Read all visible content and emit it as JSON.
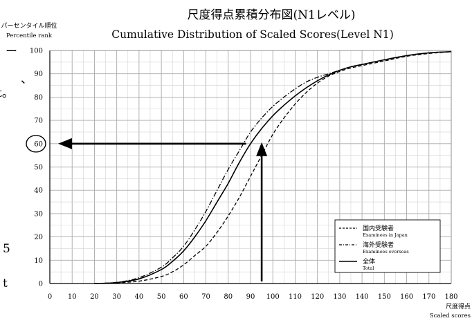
{
  "page": {
    "left_margin_fragments": [
      "ー",
      "、",
      "t。",
      "5",
      "t"
    ]
  },
  "chart_data": {
    "type": "line",
    "title": "尺度得点累積分布図(N1レベル)",
    "subtitle": "Cumulative Distribution of Scaled Scores(Level N1)",
    "ylabel_ja": "パーセンタイル順位",
    "ylabel_en": "Percentile rank",
    "xlabel_ja": "尺度得点",
    "xlabel_en": "Scaled scores",
    "xlim": [
      0,
      180
    ],
    "ylim": [
      0,
      100
    ],
    "x_ticks": [
      0,
      10,
      20,
      30,
      40,
      50,
      60,
      70,
      80,
      90,
      100,
      110,
      120,
      130,
      140,
      150,
      160,
      170,
      180
    ],
    "y_ticks": [
      0,
      10,
      20,
      30,
      40,
      50,
      60,
      70,
      80,
      90,
      100
    ],
    "grid": true,
    "grid_minor_x": 5,
    "grid_minor_y": 5,
    "legend_position": "bottom-right",
    "series": [
      {
        "name": "国内受験者",
        "name_en": "Examinees in Japan",
        "style": "dashed",
        "x": [
          20,
          30,
          40,
          50,
          55,
          60,
          65,
          70,
          75,
          80,
          85,
          90,
          95,
          100,
          105,
          110,
          115,
          120,
          125,
          130,
          135,
          140,
          150,
          160,
          170,
          180
        ],
        "y": [
          0,
          0.3,
          1,
          3,
          5,
          8,
          12,
          16,
          22,
          29,
          37,
          46,
          55,
          64,
          71,
          77,
          82,
          86,
          89,
          91,
          92.5,
          93.5,
          95.5,
          97.5,
          98.7,
          99.5
        ]
      },
      {
        "name": "海外受験者",
        "name_en": "Examinees overseas",
        "style": "dashdot",
        "x": [
          20,
          30,
          40,
          50,
          55,
          60,
          65,
          70,
          75,
          80,
          85,
          90,
          95,
          100,
          105,
          110,
          115,
          120,
          125,
          130,
          135,
          140,
          150,
          160,
          170,
          180
        ],
        "y": [
          0,
          0.5,
          2.5,
          7,
          11,
          16,
          23,
          31,
          40,
          49,
          57,
          65,
          71,
          76,
          80,
          83.5,
          86.5,
          88.5,
          90,
          91.5,
          93,
          94,
          96,
          97.8,
          99,
          99.5
        ]
      },
      {
        "name": "全体",
        "name_en": "Total",
        "style": "solid",
        "x": [
          20,
          30,
          40,
          50,
          55,
          60,
          65,
          70,
          75,
          80,
          85,
          90,
          95,
          100,
          105,
          110,
          115,
          120,
          125,
          130,
          135,
          140,
          150,
          160,
          170,
          180
        ],
        "y": [
          0,
          0.4,
          2,
          6,
          9.5,
          14,
          20,
          27,
          35,
          43,
          52,
          60,
          66.5,
          72,
          76.5,
          80.5,
          84,
          87,
          89.5,
          91.5,
          93,
          94,
          96,
          97.8,
          99,
          99.5
        ]
      }
    ],
    "annotations": {
      "circled_y_value": 60,
      "horizontal_arrow": {
        "from_x": 88,
        "to_x": 0,
        "y": 60
      },
      "vertical_arrow": {
        "x": 95,
        "from_y": 0,
        "to_y": 60
      }
    }
  }
}
